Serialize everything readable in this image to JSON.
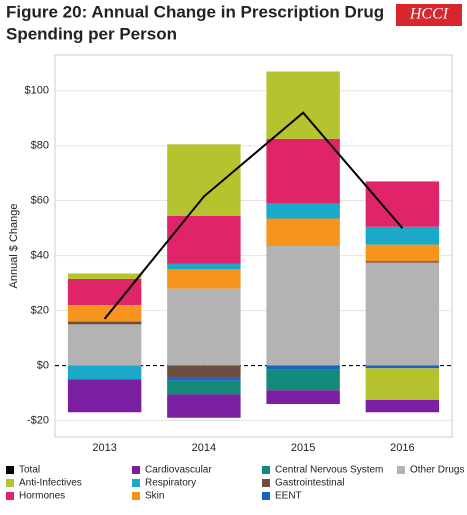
{
  "chart_data": {
    "type": "bar",
    "stacked": true,
    "title": [
      "Figure 20: Annual Change in Prescription Drug",
      "Spending per Person"
    ],
    "logo": "HCCI",
    "y_label": "Annual $ Change",
    "categories": [
      "2013",
      "2014",
      "2015",
      "2016"
    ],
    "ylim": [
      -26,
      113
    ],
    "yticks": [
      {
        "value": -20,
        "label": "-$20"
      },
      {
        "value": 0,
        "label": "$0"
      },
      {
        "value": 20,
        "label": "$20"
      },
      {
        "value": 40,
        "label": "$40"
      },
      {
        "value": 60,
        "label": "$60"
      },
      {
        "value": 80,
        "label": "$80"
      },
      {
        "value": 100,
        "label": "$100"
      }
    ],
    "grid": true,
    "series": [
      {
        "name": "Total",
        "type": "line",
        "color": "#000000",
        "values": [
          17,
          61.5,
          92,
          50
        ]
      },
      {
        "name": "Anti-Infectives",
        "color": "#b5c42e",
        "values": [
          2,
          26,
          24.5,
          -11.5
        ]
      },
      {
        "name": "Hormones",
        "color": "#e0246a",
        "values": [
          9.5,
          17.5,
          23.5,
          16.5
        ]
      },
      {
        "name": "Cardiovascular",
        "color": "#7b1fa2",
        "values": [
          -12,
          -8.5,
          -5,
          -4.5
        ]
      },
      {
        "name": "Respiratory",
        "color": "#1ba9c9",
        "values": [
          -5,
          2,
          5.5,
          6.5
        ]
      },
      {
        "name": "Skin",
        "color": "#f7941d",
        "values": [
          6,
          7,
          10,
          6
        ]
      },
      {
        "name": "Central Nervous System",
        "color": "#138a7a",
        "values": [
          0,
          -5,
          -7.5,
          0
        ]
      },
      {
        "name": "Gastrointestinal",
        "color": "#6d4c41",
        "values": [
          1,
          -4.5,
          0,
          0.5
        ]
      },
      {
        "name": "EENT",
        "color": "#1565c0",
        "values": [
          0,
          -1,
          -1.5,
          -1
        ]
      },
      {
        "name": "Other Drugs",
        "color": "#b3b3b3",
        "values": [
          15,
          28,
          43.5,
          37.5
        ]
      }
    ]
  }
}
